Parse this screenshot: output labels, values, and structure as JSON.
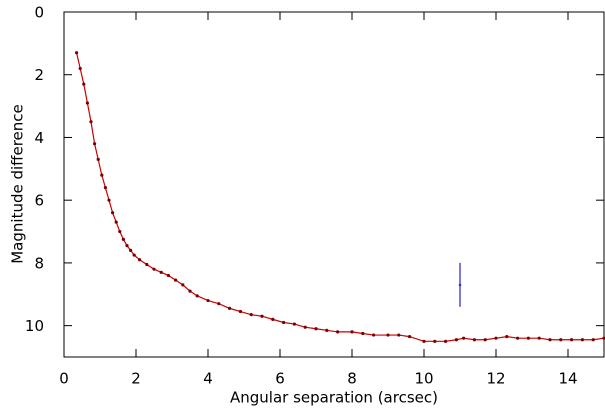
{
  "chart_data": {
    "type": "line",
    "xlabel": "Angular separation (arcsec)",
    "ylabel": "Magnitude difference",
    "xlim": [
      0,
      15
    ],
    "xticks": [
      0,
      2,
      4,
      6,
      8,
      10,
      12,
      14
    ],
    "ylim": [
      0,
      11
    ],
    "yticks": [
      0,
      2,
      4,
      6,
      8,
      10
    ],
    "y_inverted": true,
    "series": [
      {
        "color": "#cc0000",
        "x": [
          0.35,
          0.45,
          0.55,
          0.65,
          0.75,
          0.85,
          0.95,
          1.05,
          1.15,
          1.25,
          1.35,
          1.45,
          1.55,
          1.65,
          1.75,
          1.85,
          1.95,
          2.1,
          2.3,
          2.5,
          2.7,
          2.9,
          3.1,
          3.3,
          3.5,
          3.7,
          4.0,
          4.3,
          4.6,
          4.9,
          5.2,
          5.5,
          5.8,
          6.1,
          6.4,
          6.7,
          7.0,
          7.3,
          7.6,
          8.0,
          8.3,
          8.6,
          9.0,
          9.3,
          9.6,
          10.0,
          10.3,
          10.6,
          10.9,
          11.1,
          11.4,
          11.7,
          12.0,
          12.3,
          12.6,
          12.9,
          13.2,
          13.5,
          13.8,
          14.1,
          14.4,
          14.7,
          15.0
        ],
        "values": [
          1.3,
          1.8,
          2.3,
          2.9,
          3.5,
          4.2,
          4.7,
          5.2,
          5.6,
          6.0,
          6.4,
          6.7,
          7.0,
          7.25,
          7.45,
          7.6,
          7.75,
          7.9,
          8.05,
          8.2,
          8.3,
          8.4,
          8.55,
          8.7,
          8.9,
          9.05,
          9.2,
          9.3,
          9.45,
          9.55,
          9.65,
          9.7,
          9.8,
          9.9,
          9.95,
          10.05,
          10.1,
          10.15,
          10.2,
          10.2,
          10.25,
          10.3,
          10.3,
          10.3,
          10.35,
          10.5,
          10.5,
          10.5,
          10.45,
          10.4,
          10.45,
          10.45,
          10.4,
          10.35,
          10.4,
          10.4,
          10.4,
          10.45,
          10.45,
          10.45,
          10.45,
          10.45,
          10.4
        ]
      },
      {
        "color": "#3333cc",
        "x": [
          11
        ],
        "values": [
          8.7
        ],
        "errors": [
          0.7
        ]
      }
    ]
  }
}
